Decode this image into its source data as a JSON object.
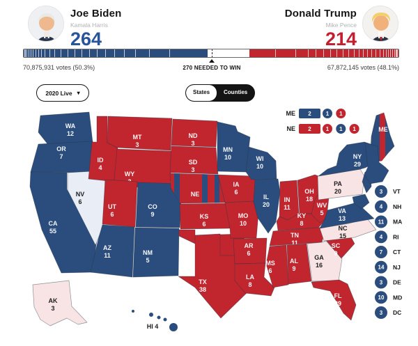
{
  "colors": {
    "dem": "#2b4d7d",
    "gop": "#c1262f",
    "dem_light": "#e9eef6",
    "gop_light": "#f8e4e4",
    "dem_accent": "#27549a",
    "gop_accent": "#c21f30"
  },
  "header": {
    "left": {
      "name": "Joe Biden",
      "running_mate": "Kamala Harris",
      "electoral_votes": "264"
    },
    "right": {
      "name": "Donald Trump",
      "running_mate": "Mike Pence",
      "electoral_votes": "214"
    }
  },
  "bar": {
    "dem_ev": 264,
    "gop_ev": 214,
    "total_ev": 538,
    "needed_ev": 270,
    "left_caption": "70,875,931 votes (50.3%)",
    "needed_caption": "270 NEEDED TO WIN",
    "right_caption": "67,872,145 votes (48.1%)"
  },
  "controls": {
    "dropdown_label": "2020 Live",
    "toggle": {
      "options": [
        "States",
        "Counties"
      ],
      "selected": "States"
    }
  },
  "split_legend": [
    {
      "state": "ME",
      "segments": [
        {
          "value": 2,
          "party": "dem",
          "shape": "rect"
        },
        {
          "value": 1,
          "party": "dem",
          "shape": "circle"
        },
        {
          "value": 1,
          "party": "gop",
          "shape": "circle"
        }
      ]
    },
    {
      "state": "NE",
      "segments": [
        {
          "value": 2,
          "party": "gop",
          "shape": "rect"
        },
        {
          "value": 1,
          "party": "gop",
          "shape": "circle"
        },
        {
          "value": 1,
          "party": "dem",
          "shape": "circle"
        },
        {
          "value": 1,
          "party": "gop",
          "shape": "circle"
        }
      ]
    }
  ],
  "map": {
    "states": [
      {
        "abbr": "WA",
        "ev": 12,
        "party": "dem"
      },
      {
        "abbr": "OR",
        "ev": 7,
        "party": "dem"
      },
      {
        "abbr": "CA",
        "ev": 55,
        "party": "dem"
      },
      {
        "abbr": "NV",
        "ev": 6,
        "party": "uncalled_dem"
      },
      {
        "abbr": "ID",
        "ev": 4,
        "party": "gop"
      },
      {
        "abbr": "MT",
        "ev": 3,
        "party": "gop"
      },
      {
        "abbr": "WY",
        "ev": 3,
        "party": "gop"
      },
      {
        "abbr": "UT",
        "ev": 6,
        "party": "gop"
      },
      {
        "abbr": "CO",
        "ev": 9,
        "party": "dem"
      },
      {
        "abbr": "AZ",
        "ev": 11,
        "party": "dem"
      },
      {
        "abbr": "NM",
        "ev": 5,
        "party": "dem"
      },
      {
        "abbr": "ND",
        "ev": 3,
        "party": "gop"
      },
      {
        "abbr": "SD",
        "ev": 3,
        "party": "gop"
      },
      {
        "abbr": "NE",
        "ev": null,
        "party": "gop_split"
      },
      {
        "abbr": "KS",
        "ev": 6,
        "party": "gop"
      },
      {
        "abbr": "OK",
        "ev": 7,
        "party": "gop"
      },
      {
        "abbr": "TX",
        "ev": 38,
        "party": "gop"
      },
      {
        "abbr": "MN",
        "ev": 10,
        "party": "dem"
      },
      {
        "abbr": "IA",
        "ev": 6,
        "party": "gop"
      },
      {
        "abbr": "MO",
        "ev": 10,
        "party": "gop"
      },
      {
        "abbr": "AR",
        "ev": 6,
        "party": "gop"
      },
      {
        "abbr": "LA",
        "ev": 8,
        "party": "gop"
      },
      {
        "abbr": "WI",
        "ev": 10,
        "party": "dem"
      },
      {
        "abbr": "IL",
        "ev": 20,
        "party": "dem"
      },
      {
        "abbr": "MS",
        "ev": 6,
        "party": "gop"
      },
      {
        "abbr": "MI",
        "ev": 16,
        "party": "dem"
      },
      {
        "abbr": "IN",
        "ev": 11,
        "party": "gop"
      },
      {
        "abbr": "OH",
        "ev": 18,
        "party": "gop"
      },
      {
        "abbr": "KY",
        "ev": 8,
        "party": "gop"
      },
      {
        "abbr": "TN",
        "ev": 11,
        "party": "gop"
      },
      {
        "abbr": "AL",
        "ev": 9,
        "party": "gop"
      },
      {
        "abbr": "GA",
        "ev": 16,
        "party": "uncalled_gop"
      },
      {
        "abbr": "FL",
        "ev": 29,
        "party": "gop"
      },
      {
        "abbr": "SC",
        "ev": 9,
        "party": "gop"
      },
      {
        "abbr": "NC",
        "ev": 15,
        "party": "uncalled_gop"
      },
      {
        "abbr": "VA",
        "ev": 13,
        "party": "dem"
      },
      {
        "abbr": "WV",
        "ev": 5,
        "party": "gop"
      },
      {
        "abbr": "PA",
        "ev": 20,
        "party": "uncalled_gop"
      },
      {
        "abbr": "NY",
        "ev": 29,
        "party": "dem"
      },
      {
        "abbr": "ME",
        "ev": null,
        "party": "dem_split"
      },
      {
        "abbr": "AK",
        "ev": 3,
        "party": "uncalled_gop"
      },
      {
        "abbr": "HI",
        "ev": 4,
        "party": "dem"
      },
      {
        "abbr": "NJ-coast",
        "ev": null,
        "party": "dem"
      },
      {
        "abbr": "MD-coast",
        "ev": null,
        "party": "dem"
      },
      {
        "abbr": "NENG-coast",
        "ev": null,
        "party": "dem"
      }
    ],
    "small_states": [
      {
        "abbr": "VT",
        "ev": 3,
        "party": "dem"
      },
      {
        "abbr": "NH",
        "ev": 4,
        "party": "dem"
      },
      {
        "abbr": "MA",
        "ev": 11,
        "party": "dem"
      },
      {
        "abbr": "RI",
        "ev": 4,
        "party": "dem"
      },
      {
        "abbr": "CT",
        "ev": 7,
        "party": "dem"
      },
      {
        "abbr": "NJ",
        "ev": 14,
        "party": "dem"
      },
      {
        "abbr": "DE",
        "ev": 3,
        "party": "dem"
      },
      {
        "abbr": "MD",
        "ev": 10,
        "party": "dem"
      },
      {
        "abbr": "DC",
        "ev": 3,
        "party": "dem"
      }
    ]
  }
}
